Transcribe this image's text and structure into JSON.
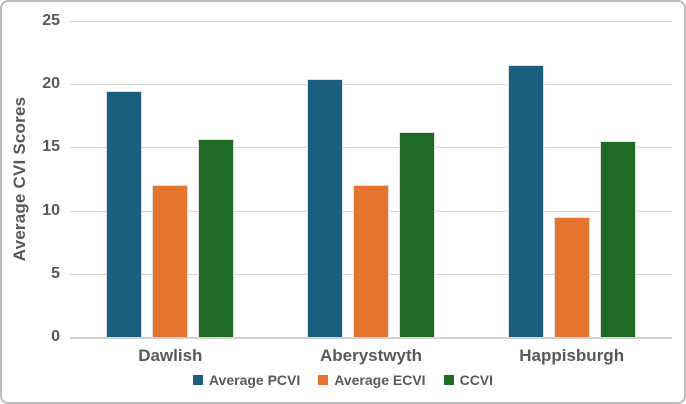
{
  "chart_data": {
    "type": "bar",
    "ylabel": "Average CVI Scores",
    "categories": [
      "Dawlish",
      "Aberystwyth",
      "Happisburgh"
    ],
    "series": [
      {
        "name": "Average PCVI",
        "color": "#1A607E",
        "values": [
          19.5,
          20.4,
          21.5
        ]
      },
      {
        "name": "Average ECVI",
        "color": "#E5752E",
        "values": [
          12,
          12,
          9.5
        ]
      },
      {
        "name": "CCVI",
        "color": "#1F6B24",
        "values": [
          15.7,
          16.2,
          15.5
        ]
      }
    ],
    "ylim": [
      0,
      25
    ],
    "yticks": [
      0,
      5,
      10,
      15,
      20,
      25
    ],
    "grid": true,
    "legend_position": "bottom",
    "text_color": "#595959",
    "gridline_color": "#D6D6D6",
    "background_color": "#FFFFFF"
  }
}
